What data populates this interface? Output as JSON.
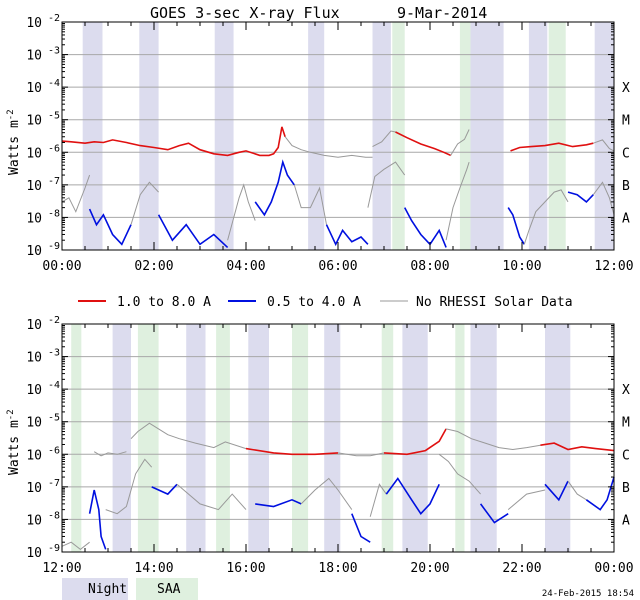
{
  "chart_data": {
    "type": "line",
    "title": "GOES 3-sec X-ray Flux",
    "date": "9-Mar-2014",
    "ylabel": "Watts m",
    "ylabel_exp": "-2",
    "y_scale": "log",
    "ylim": [
      1e-09,
      0.01
    ],
    "y_ticks": [
      {
        "mantissa": "10",
        "exp": "-9"
      },
      {
        "mantissa": "10",
        "exp": "-8"
      },
      {
        "mantissa": "10",
        "exp": "-7"
      },
      {
        "mantissa": "10",
        "exp": "-6"
      },
      {
        "mantissa": "10",
        "exp": "-5"
      },
      {
        "mantissa": "10",
        "exp": "-4"
      },
      {
        "mantissa": "10",
        "exp": "-3"
      },
      {
        "mantissa": "10",
        "exp": "-2"
      }
    ],
    "flare_classes": [
      {
        "label": "A",
        "flux": 1e-08
      },
      {
        "label": "B",
        "flux": 1e-07
      },
      {
        "label": "C",
        "flux": 1e-06
      },
      {
        "label": "M",
        "flux": 1e-05
      },
      {
        "label": "X",
        "flux": 0.0001
      }
    ],
    "legend": [
      {
        "name": "1.0 to 8.0 A",
        "color": "#e01010"
      },
      {
        "name": "0.5 to 4.0 A",
        "color": "#0010e0"
      },
      {
        "name": "No RHESSI Solar Data",
        "color": "#999999"
      }
    ],
    "bottom_legend": [
      {
        "name": "Night",
        "color": "#dcdcee"
      },
      {
        "name": "SAA",
        "color": "#dff0df"
      }
    ],
    "footer": "24-Feb-2015 18:54",
    "panels": [
      {
        "x_range_hours": [
          0,
          12
        ],
        "tick_labels": [
          "00:00",
          "02:00",
          "04:00",
          "06:00",
          "08:00",
          "10:00",
          "12:00"
        ],
        "night": [
          [
            0.45,
            0.88
          ],
          [
            1.68,
            2.1
          ],
          [
            3.32,
            3.73
          ],
          [
            5.35,
            5.7
          ],
          [
            6.75,
            7.15
          ],
          [
            8.88,
            9.6
          ],
          [
            10.15,
            10.55
          ],
          [
            11.58,
            12.0
          ]
        ],
        "saa": [
          [
            7.18,
            7.45
          ],
          [
            8.65,
            8.88
          ],
          [
            10.58,
            10.95
          ]
        ],
        "long_channel": [
          {
            "rhessi": true,
            "t": [
              0.0,
              0.2,
              0.5,
              0.7,
              0.9,
              1.1,
              1.4,
              1.7,
              2.0,
              2.3,
              2.55,
              2.75,
              3.0,
              3.3,
              3.6,
              3.85,
              4.0,
              4.3,
              4.5,
              4.6,
              4.7,
              4.78,
              4.85
            ],
            "v": [
              2.2e-06,
              2.1e-06,
              1.9e-06,
              2.1e-06,
              2e-06,
              2.4e-06,
              2e-06,
              1.6e-06,
              1.4e-06,
              1.2e-06,
              1.6e-06,
              1.9e-06,
              1.2e-06,
              9e-07,
              8e-07,
              1e-06,
              1.1e-06,
              8e-07,
              8e-07,
              9e-07,
              1.4e-06,
              6e-06,
              3e-06
            ]
          },
          {
            "rhessi": false,
            "t": [
              4.85,
              5.0,
              5.2,
              5.4,
              5.7,
              6.0,
              6.3,
              6.6,
              6.75
            ],
            "v": [
              3e-06,
              1.6e-06,
              1.2e-06,
              1e-06,
              8e-07,
              7e-07,
              8e-07,
              7e-07,
              7e-07
            ]
          },
          {
            "rhessi": false,
            "t": [
              6.75,
              6.95,
              7.15,
              7.25
            ],
            "v": [
              1.5e-06,
              2.1e-06,
              4.5e-06,
              4.2e-06
            ]
          },
          {
            "rhessi": true,
            "t": [
              7.25,
              7.5,
              7.8,
              8.1,
              8.3,
              8.45
            ],
            "v": [
              4.2e-06,
              2.8e-06,
              1.8e-06,
              1.3e-06,
              1e-06,
              8e-07
            ]
          },
          {
            "rhessi": false,
            "t": [
              8.45,
              8.6,
              8.75,
              8.85
            ],
            "v": [
              8e-07,
              1.8e-06,
              2.5e-06,
              5e-06
            ]
          },
          {
            "rhessi": true,
            "t": [
              9.75,
              9.95,
              10.2,
              10.5,
              10.8,
              11.1,
              11.4,
              11.55
            ],
            "v": [
              1.1e-06,
              1.4e-06,
              1.5e-06,
              1.6e-06,
              1.9e-06,
              1.5e-06,
              1.7e-06,
              1.9e-06
            ]
          },
          {
            "rhessi": false,
            "t": [
              11.55,
              11.75,
              11.9,
              12.0
            ],
            "v": [
              1.9e-06,
              2.4e-06,
              1.3e-06,
              1.1e-06
            ]
          }
        ],
        "short_channel": [
          {
            "rhessi": false,
            "t": [
              0.0,
              0.15,
              0.3,
              0.5,
              0.6
            ],
            "v": [
              3e-08,
              4e-08,
              1.5e-08,
              8e-08,
              2e-07
            ]
          },
          {
            "rhessi": true,
            "t": [
              0.6,
              0.75,
              0.9,
              1.1,
              1.3,
              1.5
            ],
            "v": [
              1.8e-08,
              6e-09,
              1.2e-08,
              3e-09,
              1.5e-09,
              6e-09
            ]
          },
          {
            "rhessi": false,
            "t": [
              1.5,
              1.7,
              1.9,
              2.1
            ],
            "v": [
              6e-09,
              5e-08,
              1.2e-07,
              6e-08
            ]
          },
          {
            "rhessi": true,
            "t": [
              2.1,
              2.4,
              2.7,
              3.0,
              3.3,
              3.6
            ],
            "v": [
              1.2e-08,
              2e-09,
              6e-09,
              1.5e-09,
              3e-09,
              1.2e-09
            ]
          },
          {
            "rhessi": false,
            "t": [
              3.6,
              3.75,
              3.85,
              3.95,
              4.05,
              4.2
            ],
            "v": [
              2e-09,
              1.2e-08,
              4e-08,
              1e-07,
              3e-08,
              8e-09
            ]
          },
          {
            "rhessi": true,
            "t": [
              4.2,
              4.4,
              4.55,
              4.7,
              4.8,
              4.9,
              5.05
            ],
            "v": [
              3e-08,
              1.2e-08,
              3e-08,
              1.2e-07,
              5e-07,
              2e-07,
              1e-07
            ]
          },
          {
            "rhessi": false,
            "t": [
              5.05,
              5.2,
              5.4,
              5.6,
              5.75
            ],
            "v": [
              1e-07,
              2e-08,
              2e-08,
              8e-08,
              6e-09
            ]
          },
          {
            "rhessi": true,
            "t": [
              5.75,
              5.95,
              6.1,
              6.3,
              6.5,
              6.65
            ],
            "v": [
              6e-09,
              1.5e-09,
              4e-09,
              1.8e-09,
              2.5e-09,
              1.5e-09
            ]
          },
          {
            "rhessi": false,
            "t": [
              6.65,
              6.8,
              7.0,
              7.25,
              7.45
            ],
            "v": [
              2e-08,
              1.8e-07,
              3e-07,
              5e-07,
              2e-07
            ]
          },
          {
            "rhessi": true,
            "t": [
              7.45,
              7.6,
              7.8,
              8.0,
              8.2,
              8.35
            ],
            "v": [
              2e-08,
              8e-09,
              3e-09,
              1.5e-09,
              4e-09,
              1.2e-09
            ]
          },
          {
            "rhessi": false,
            "t": [
              8.35,
              8.5,
              8.65,
              8.8,
              8.85
            ],
            "v": [
              2e-09,
              2e-08,
              8e-08,
              3e-07,
              5e-07
            ]
          },
          {
            "rhessi": true,
            "t": [
              9.7,
              9.8,
              9.95,
              10.05
            ],
            "v": [
              2e-08,
              1.2e-08,
              2.5e-09,
              1.5e-09
            ]
          },
          {
            "rhessi": false,
            "t": [
              10.05,
              10.15,
              10.3,
              10.5,
              10.7,
              10.85,
              11.0
            ],
            "v": [
              1.5e-09,
              4e-09,
              1.5e-08,
              3e-08,
              6e-08,
              7e-08,
              3e-08
            ]
          },
          {
            "rhessi": true,
            "t": [
              11.0,
              11.2,
              11.4,
              11.55
            ],
            "v": [
              6e-08,
              5e-08,
              3e-08,
              5e-08
            ]
          },
          {
            "rhessi": false,
            "t": [
              11.55,
              11.75,
              11.9,
              12.0
            ],
            "v": [
              5e-08,
              1.2e-07,
              4e-08,
              1.2e-08
            ]
          }
        ]
      },
      {
        "x_range_hours": [
          12,
          24
        ],
        "tick_labels": [
          "12:00",
          "14:00",
          "16:00",
          "18:00",
          "20:00",
          "22:00",
          "00:00"
        ],
        "night": [
          [
            13.1,
            13.5
          ],
          [
            14.7,
            15.12
          ],
          [
            16.05,
            16.5
          ],
          [
            17.7,
            18.05
          ],
          [
            19.4,
            19.95
          ],
          [
            20.88,
            21.45
          ],
          [
            22.5,
            23.05
          ]
        ],
        "saa": [
          [
            12.2,
            12.42
          ],
          [
            13.65,
            14.1
          ],
          [
            15.35,
            15.65
          ],
          [
            17.0,
            17.35
          ],
          [
            18.95,
            19.2
          ],
          [
            20.55,
            20.75
          ]
        ],
        "long_channel": [
          {
            "rhessi": false,
            "t": [
              12.7,
              12.85,
              13.0,
              13.2,
              13.4
            ],
            "v": [
              1.2e-06,
              9e-07,
              1.1e-06,
              1e-06,
              1.2e-06
            ]
          },
          {
            "rhessi": false,
            "t": [
              13.5,
              13.65,
              13.9,
              14.1,
              14.3,
              14.55,
              14.9,
              15.3,
              15.55,
              16.0
            ],
            "v": [
              3e-06,
              5e-06,
              9e-06,
              6e-06,
              4e-06,
              3e-06,
              2.2e-06,
              1.6e-06,
              2.4e-06,
              1.5e-06
            ]
          },
          {
            "rhessi": true,
            "t": [
              16.0,
              16.6,
              17.0,
              17.5,
              18.0
            ],
            "v": [
              1.5e-06,
              1.1e-06,
              1e-06,
              1e-06,
              1.1e-06
            ]
          },
          {
            "rhessi": false,
            "t": [
              18.0,
              18.4,
              18.7,
              19.0
            ],
            "v": [
              1.1e-06,
              9e-07,
              9e-07,
              1.1e-06
            ]
          },
          {
            "rhessi": true,
            "t": [
              19.0,
              19.5,
              19.9,
              20.2,
              20.35
            ],
            "v": [
              1.1e-06,
              1e-06,
              1.3e-06,
              2.5e-06,
              6e-06
            ]
          },
          {
            "rhessi": false,
            "t": [
              20.35,
              20.6,
              20.9,
              21.2,
              21.5,
              21.8,
              22.1,
              22.4
            ],
            "v": [
              6e-06,
              5e-06,
              3e-06,
              2.2e-06,
              1.6e-06,
              1.4e-06,
              1.6e-06,
              1.9e-06
            ]
          },
          {
            "rhessi": true,
            "t": [
              22.4,
              22.7,
              23.0,
              23.3,
              23.6,
              24.0
            ],
            "v": [
              1.9e-06,
              2.2e-06,
              1.4e-06,
              1.7e-06,
              1.5e-06,
              1.3e-06
            ]
          }
        ],
        "short_channel": [
          {
            "rhessi": false,
            "t": [
              12.0,
              12.2,
              12.4,
              12.6
            ],
            "v": [
              1.5e-09,
              2e-09,
              1.2e-09,
              2e-09
            ]
          },
          {
            "rhessi": true,
            "t": [
              12.6,
              12.7,
              12.8,
              12.85,
              12.95
            ],
            "v": [
              1.5e-08,
              8e-08,
              2e-08,
              3e-09,
              1.2e-09
            ]
          },
          {
            "rhessi": false,
            "t": [
              12.95,
              13.2,
              13.4,
              13.6,
              13.8,
              13.95
            ],
            "v": [
              2e-08,
              1.5e-08,
              2.5e-08,
              2.5e-07,
              7e-07,
              4e-07
            ]
          },
          {
            "rhessi": true,
            "t": [
              13.95,
              14.3,
              14.5
            ],
            "v": [
              1e-07,
              6e-08,
              1.2e-07
            ]
          },
          {
            "rhessi": false,
            "t": [
              14.5,
              15.0,
              15.4,
              15.7,
              16.0
            ],
            "v": [
              1.2e-07,
              3e-08,
              2e-08,
              6e-08,
              2e-08
            ]
          },
          {
            "rhessi": true,
            "t": [
              16.2,
              16.6,
              17.0,
              17.2
            ],
            "v": [
              3e-08,
              2.5e-08,
              4e-08,
              3e-08
            ]
          },
          {
            "rhessi": false,
            "t": [
              17.2,
              17.5,
              17.8,
              18.0,
              18.3
            ],
            "v": [
              3e-08,
              8e-08,
              1.8e-07,
              8e-08,
              2e-08
            ]
          },
          {
            "rhessi": true,
            "t": [
              18.3,
              18.5,
              18.7
            ],
            "v": [
              1.5e-08,
              3e-09,
              2e-09
            ]
          },
          {
            "rhessi": false,
            "t": [
              18.7,
              18.9,
              19.05
            ],
            "v": [
              1.2e-08,
              1.2e-07,
              6e-08
            ]
          },
          {
            "rhessi": true,
            "t": [
              19.05,
              19.3,
              19.6,
              19.8,
              20.0,
              20.2
            ],
            "v": [
              6e-08,
              1.8e-07,
              4e-08,
              1.5e-08,
              3e-08,
              1.2e-07
            ]
          },
          {
            "rhessi": false,
            "t": [
              20.2,
              20.4,
              20.6,
              20.85,
              21.1
            ],
            "v": [
              1e-06,
              6e-07,
              2.5e-07,
              1.5e-07,
              6e-08
            ]
          },
          {
            "rhessi": true,
            "t": [
              21.1,
              21.4,
              21.7
            ],
            "v": [
              3e-08,
              8e-09,
              1.5e-08
            ]
          },
          {
            "rhessi": false,
            "t": [
              21.7,
              22.1,
              22.5
            ],
            "v": [
              2e-08,
              6e-08,
              8e-08
            ]
          },
          {
            "rhessi": true,
            "t": [
              22.5,
              22.8,
              23.0
            ],
            "v": [
              1.2e-07,
              4e-08,
              1.5e-07
            ]
          },
          {
            "rhessi": false,
            "t": [
              23.0,
              23.2,
              23.4
            ],
            "v": [
              1.5e-07,
              6e-08,
              4e-08
            ]
          },
          {
            "rhessi": true,
            "t": [
              23.4,
              23.7,
              23.85,
              24.0
            ],
            "v": [
              4e-08,
              2e-08,
              4e-08,
              2e-07
            ]
          }
        ]
      }
    ]
  }
}
